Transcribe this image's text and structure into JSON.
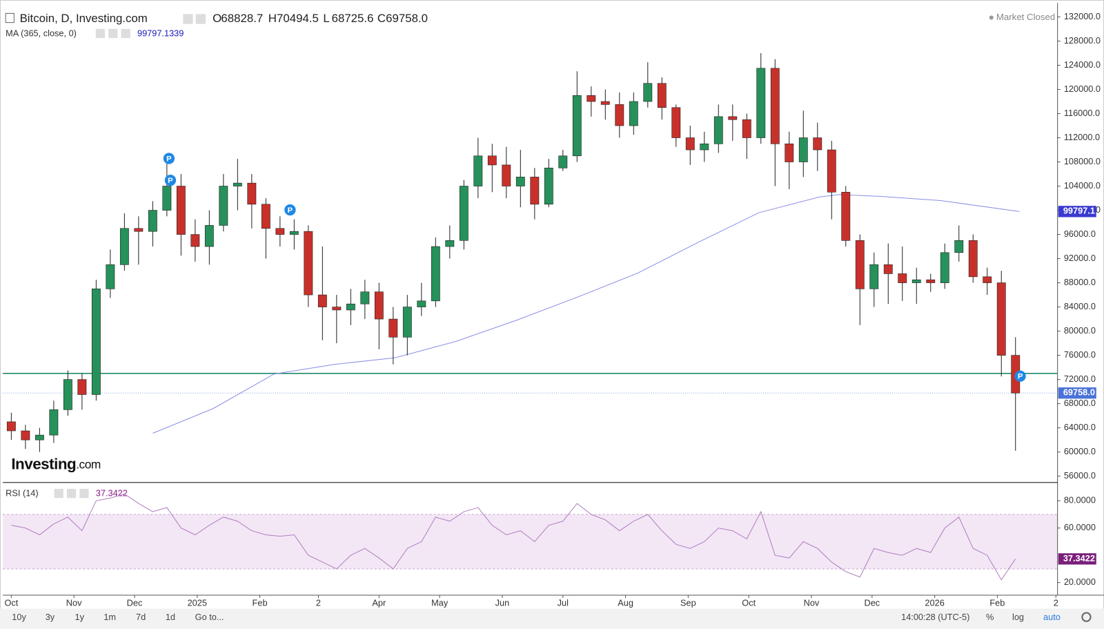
{
  "header": {
    "title": "Bitcoin, D, Investing.com",
    "status": "Market Closed",
    "ohlc": [
      {
        "key": "O",
        "value": "68828.7"
      },
      {
        "key": "H",
        "value": "70494.5"
      },
      {
        "key": "L",
        "value": "68725.6"
      },
      {
        "key": "C",
        "value": "69758.0"
      }
    ]
  },
  "logo": [
    "Investing",
    ".com"
  ],
  "event_marker": "P",
  "toolbar": {
    "ranges": [
      "10y",
      "3y",
      "1y",
      "1m",
      "7d",
      "1d"
    ],
    "goto": "Go to...",
    "time": "14:00:28 (UTC-5)",
    "options": [
      "%",
      "log",
      "auto"
    ]
  },
  "chart_data": {
    "type": "candlestick",
    "xlim": [
      -4.2,
      517.8
    ],
    "xticks": [
      {
        "value": 0,
        "label": "Oct"
      },
      {
        "value": 31,
        "label": "Nov"
      },
      {
        "value": 61,
        "label": "Dec"
      },
      {
        "value": 92,
        "label": "2025"
      },
      {
        "value": 123,
        "label": "Feb"
      },
      {
        "value": 152,
        "label": "2"
      },
      {
        "value": 182,
        "label": "Apr"
      },
      {
        "value": 212,
        "label": "May"
      },
      {
        "value": 243,
        "label": "Jun"
      },
      {
        "value": 273,
        "label": "Jul"
      },
      {
        "value": 304,
        "label": "Aug"
      },
      {
        "value": 335,
        "label": "Sep"
      },
      {
        "value": 365,
        "label": "Oct"
      },
      {
        "value": 396,
        "label": "Nov"
      },
      {
        "value": 426,
        "label": "Dec"
      },
      {
        "value": 457,
        "label": "2026"
      },
      {
        "value": 488,
        "label": "Feb"
      },
      {
        "value": 517,
        "label": "2"
      }
    ],
    "ylim": [
      55070,
      134330
    ],
    "yticks": [
      {
        "value": 56000,
        "label": "56000.0"
      },
      {
        "value": 60000,
        "label": "60000.0"
      },
      {
        "value": 64000,
        "label": "64000.0"
      },
      {
        "value": 68000,
        "label": "68000.0"
      },
      {
        "value": 72000,
        "label": "72000.0"
      },
      {
        "value": 76000,
        "label": "76000.0"
      },
      {
        "value": 80000,
        "label": "80000.0"
      },
      {
        "value": 84000,
        "label": "84000.0"
      },
      {
        "value": 88000,
        "label": "88000.0"
      },
      {
        "value": 92000,
        "label": "92000.0"
      },
      {
        "value": 96000,
        "label": "96000.0"
      },
      {
        "value": 100000,
        "label": "100000.0"
      },
      {
        "value": 104000,
        "label": "104000.0"
      },
      {
        "value": 108000,
        "label": "108000.0"
      },
      {
        "value": 112000,
        "label": "112000.0"
      },
      {
        "value": 116000,
        "label": "116000.0"
      },
      {
        "value": 120000,
        "label": "120000.0"
      },
      {
        "value": 124000,
        "label": "124000.0"
      },
      {
        "value": 128000,
        "label": "128000.0"
      },
      {
        "value": 132000,
        "label": "132000.0"
      }
    ],
    "candles": {
      "up_color": "#26915a",
      "down_color": "#c8312b",
      "x": [
        0,
        7,
        14,
        21,
        28,
        35,
        42,
        49,
        56,
        63,
        70,
        77,
        84,
        91,
        98,
        105,
        112,
        119,
        126,
        133,
        140,
        147,
        154,
        161,
        168,
        175,
        182,
        189,
        196,
        203,
        210,
        217,
        224,
        231,
        238,
        245,
        252,
        259,
        266,
        273,
        280,
        287,
        294,
        301,
        308,
        315,
        322,
        329,
        336,
        343,
        350,
        357,
        364,
        371,
        378,
        385,
        392,
        399,
        406,
        413,
        420,
        427,
        434,
        441,
        448,
        455,
        462,
        469,
        476,
        483,
        490,
        497
      ],
      "open": [
        65000,
        63500,
        62000,
        62800,
        67000,
        72000,
        69500,
        87000,
        91000,
        97000,
        96500,
        100000,
        104000,
        96000,
        94000,
        97500,
        104000,
        104500,
        101000,
        97000,
        96000,
        96500,
        86000,
        84000,
        83500,
        84500,
        86500,
        82000,
        79000,
        84000,
        85000,
        94000,
        95000,
        104000,
        109000,
        107500,
        104000,
        105500,
        101000,
        107000,
        109000,
        119000,
        118000,
        117500,
        114000,
        118000,
        121000,
        117000,
        112000,
        110000,
        111000,
        115500,
        115000,
        112000,
        123500,
        111000,
        108000,
        112000,
        110000,
        103000,
        95000,
        87000,
        91000,
        89500,
        88000,
        88500,
        88000,
        93000,
        95000,
        89000,
        88000,
        76000
      ],
      "high": [
        66500,
        64500,
        64000,
        68500,
        73500,
        73000,
        88500,
        93500,
        99500,
        99000,
        101500,
        108000,
        106000,
        98500,
        100000,
        106000,
        108500,
        106000,
        102000,
        99000,
        98500,
        97500,
        94000,
        86000,
        87000,
        88500,
        88000,
        84000,
        86000,
        88000,
        95500,
        97500,
        105000,
        112000,
        111000,
        110500,
        110000,
        107000,
        108500,
        110000,
        123000,
        120500,
        120000,
        119500,
        119500,
        124500,
        122000,
        117500,
        114000,
        113000,
        117500,
        117500,
        116000,
        126000,
        125000,
        113000,
        116500,
        114500,
        111500,
        104000,
        96000,
        93000,
        94500,
        94000,
        90500,
        89500,
        94500,
        97500,
        96000,
        90500,
        90000,
        79000
      ],
      "low": [
        62000,
        60500,
        60000,
        61500,
        66000,
        67000,
        68500,
        85500,
        90000,
        91000,
        94000,
        99000,
        92500,
        91500,
        91000,
        96500,
        100000,
        97000,
        92000,
        94000,
        93500,
        84000,
        78500,
        78000,
        81000,
        82000,
        77000,
        74500,
        76000,
        82500,
        84000,
        92000,
        93500,
        102000,
        103000,
        102000,
        100500,
        98500,
        100500,
        106500,
        108000,
        115500,
        115000,
        112000,
        112500,
        117000,
        115000,
        110500,
        107500,
        108000,
        109500,
        111500,
        108500,
        111000,
        104000,
        103500,
        105500,
        106500,
        98500,
        94000,
        81000,
        84000,
        84500,
        85000,
        84500,
        86500,
        87000,
        91500,
        88000,
        86000,
        72500,
        60200
      ],
      "close": [
        63500,
        62000,
        62800,
        67000,
        72000,
        69500,
        87000,
        91000,
        97000,
        96500,
        100000,
        104000,
        96000,
        94000,
        97500,
        104000,
        104500,
        101000,
        97000,
        96000,
        96500,
        86000,
        84000,
        83500,
        84500,
        86500,
        82000,
        79000,
        84000,
        85000,
        94000,
        95000,
        104000,
        109000,
        107500,
        104000,
        105500,
        101000,
        107000,
        109000,
        119000,
        118000,
        117500,
        114000,
        118000,
        121000,
        117000,
        112000,
        110000,
        111000,
        115500,
        115000,
        112000,
        123500,
        111000,
        108000,
        112000,
        110000,
        103000,
        95000,
        87000,
        91000,
        89500,
        88000,
        88500,
        88000,
        93000,
        95000,
        89000,
        88000,
        76000,
        69758
      ]
    },
    "ma": {
      "name": "MA (365, close, 0)",
      "color": "#8a8ee6",
      "x": [
        70,
        100,
        130,
        160,
        190,
        220,
        250,
        280,
        310,
        340,
        370,
        400,
        410,
        430,
        460,
        499
      ],
      "values": [
        63100,
        67200,
        72900,
        74500,
        75600,
        78300,
        81800,
        85600,
        89600,
        94700,
        99600,
        102200,
        102600,
        102300,
        101600,
        99797.1339
      ],
      "last_label": "99797.1"
    },
    "hline": {
      "value": 73000,
      "color": "#1f8a6a"
    },
    "rsi": {
      "name": "RSI (14)",
      "color": "#b07cc0",
      "ylim": [
        10.7,
        92.9
      ],
      "yticks": [
        {
          "value": 20,
          "label": "20.0000"
        },
        {
          "value": 60,
          "label": "60.0000"
        },
        {
          "value": 80,
          "label": "80.0000"
        }
      ],
      "band": [
        30,
        70
      ],
      "values": [
        62,
        60,
        55,
        63,
        68,
        58,
        80,
        82,
        85,
        78,
        72,
        75,
        60,
        55,
        62,
        68,
        65,
        58,
        55,
        54,
        55,
        40,
        35,
        30,
        40,
        45,
        38,
        30,
        45,
        50,
        68,
        65,
        72,
        75,
        62,
        55,
        58,
        50,
        62,
        65,
        78,
        70,
        66,
        58,
        65,
        70,
        58,
        48,
        45,
        50,
        60,
        58,
        52,
        72,
        40,
        38,
        50,
        45,
        35,
        28,
        24,
        45,
        42,
        40,
        45,
        42,
        60,
        68,
        45,
        40,
        22,
        37.3422
      ]
    }
  }
}
